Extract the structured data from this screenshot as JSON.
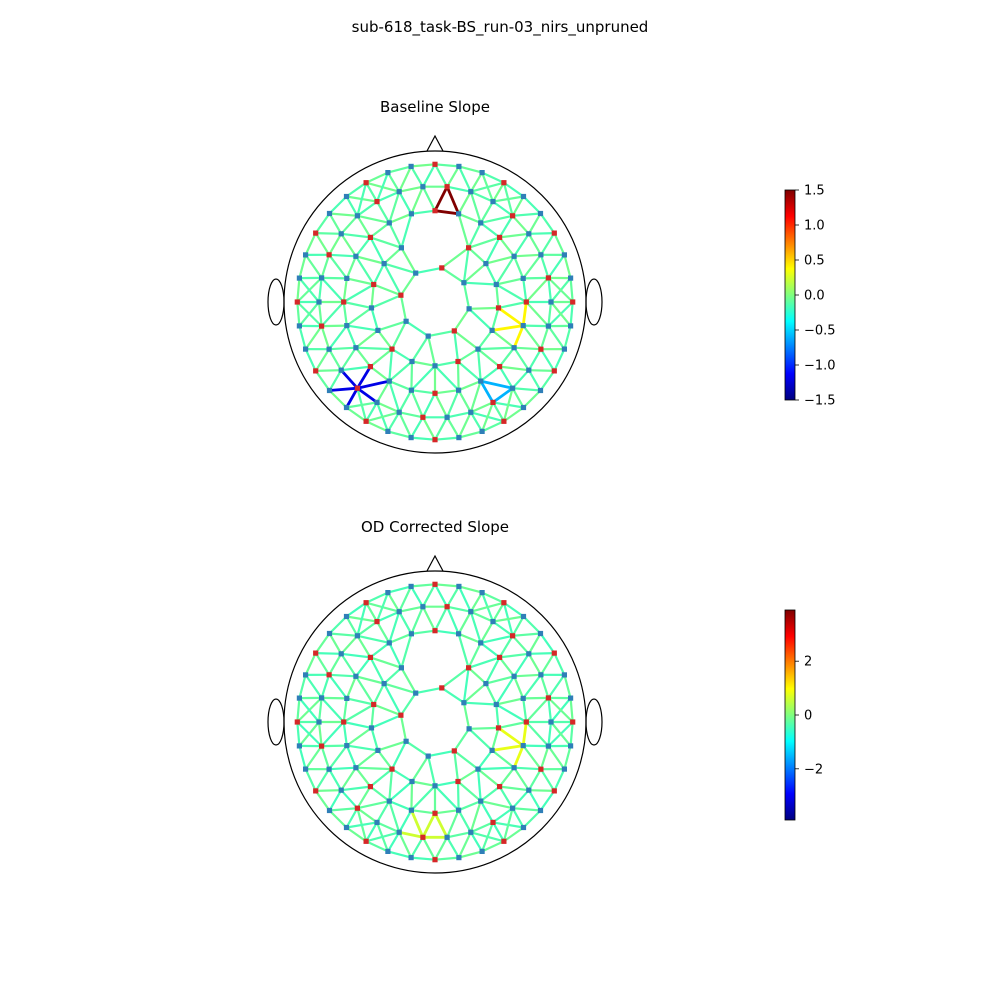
{
  "figure": {
    "suptitle": "sub-618_task-BS_run-03_nirs_unpruned"
  },
  "colors": {
    "source_marker": "#d62728",
    "detector_marker": "#2f7fb8",
    "head_outline": "#000000"
  },
  "chart_data": [
    {
      "type": "topographic-network",
      "title": "Baseline Slope",
      "colormap": "jet",
      "colorbar": {
        "vmin": -1.5,
        "vmax": 1.5,
        "ticks": [
          -1.5,
          -1.0,
          -0.5,
          0.0,
          0.5,
          1.0,
          1.5
        ],
        "tick_labels": [
          "−1.5",
          "−1.0",
          "−0.5",
          "0.0",
          "0.5",
          "1.0",
          "1.5"
        ]
      },
      "connection_value_typical": -0.1,
      "notable_connections": [
        {
          "location": "frontal-midline",
          "value": 1.5
        },
        {
          "location": "left-occipital",
          "value": -1.2
        },
        {
          "location": "right-occipital",
          "value": -0.6
        },
        {
          "location": "right-parietal",
          "value": 0.4
        }
      ]
    },
    {
      "type": "topographic-network",
      "title": "OD Corrected Slope",
      "colormap": "jet",
      "colorbar": {
        "vmin": -3.9,
        "vmax": 3.9,
        "ticks": [
          -2,
          0,
          2
        ],
        "tick_labels": [
          "−2",
          "0",
          "2"
        ]
      },
      "connection_value_typical": -0.3,
      "notable_connections": [
        {
          "location": "right-parietal",
          "value": 0.8
        },
        {
          "location": "occipital",
          "value": 0.6
        }
      ]
    }
  ]
}
